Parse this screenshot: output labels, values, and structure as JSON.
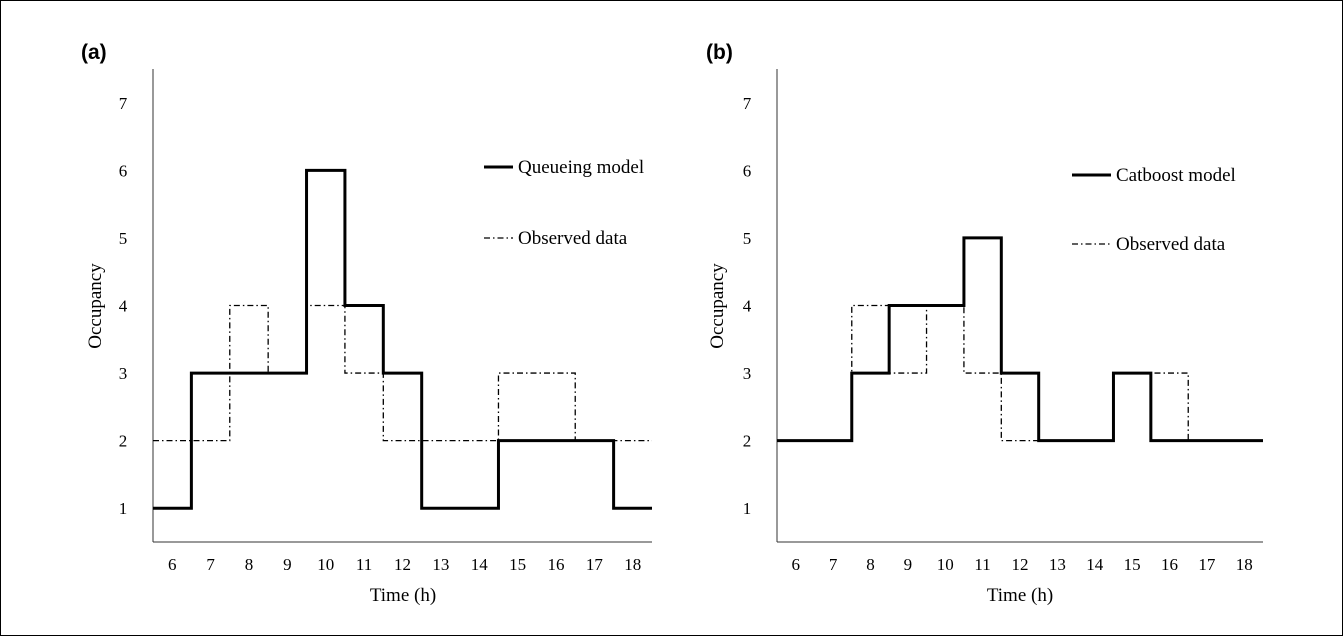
{
  "colors": {
    "axis": "#333333",
    "line": "#000000",
    "background": "#ffffff"
  },
  "chart_data": [
    {
      "panel_label": "(a)",
      "type": "line",
      "step": true,
      "xlabel": "Time (h)",
      "ylabel": "Occupancy",
      "x_ticks": [
        "6",
        "7",
        "8",
        "9",
        "10",
        "11",
        "12",
        "13",
        "14",
        "15",
        "16",
        "17",
        "18"
      ],
      "y_ticks": [
        "1",
        "2",
        "3",
        "4",
        "5",
        "6",
        "7"
      ],
      "xlim": [
        5.5,
        18.5
      ],
      "ylim": [
        0.5,
        7.5
      ],
      "legend_position": "right",
      "series": [
        {
          "name": "Queueing model",
          "style": "solid",
          "x": [
            6,
            7,
            8,
            9,
            10,
            11,
            12,
            13,
            14,
            15,
            16,
            17,
            18
          ],
          "values": [
            1,
            3,
            3,
            3,
            6,
            4,
            3,
            1,
            1,
            2,
            2,
            2,
            1
          ]
        },
        {
          "name": "Observed data",
          "style": "dashdot",
          "x": [
            6,
            7,
            8,
            9,
            10,
            11,
            12,
            13,
            14,
            15,
            16,
            17,
            18
          ],
          "values": [
            2,
            2,
            4,
            3,
            4,
            3,
            2,
            2,
            2,
            3,
            3,
            2,
            2
          ]
        }
      ]
    },
    {
      "panel_label": "(b)",
      "type": "line",
      "step": true,
      "xlabel": "Time (h)",
      "ylabel": "Occupancy",
      "x_ticks": [
        "6",
        "7",
        "8",
        "9",
        "10",
        "11",
        "12",
        "13",
        "14",
        "15",
        "16",
        "17",
        "18"
      ],
      "y_ticks": [
        "1",
        "2",
        "3",
        "4",
        "5",
        "6",
        "7"
      ],
      "xlim": [
        5.5,
        18.5
      ],
      "ylim": [
        0.5,
        7.5
      ],
      "legend_position": "right",
      "series": [
        {
          "name": "Catboost model",
          "style": "solid",
          "x": [
            6,
            7,
            8,
            9,
            10,
            11,
            12,
            13,
            14,
            15,
            16,
            17,
            18
          ],
          "values": [
            2,
            2,
            3,
            4,
            4,
            5,
            3,
            2,
            2,
            3,
            2,
            2,
            2
          ]
        },
        {
          "name": "Observed data",
          "style": "dashdot",
          "x": [
            6,
            7,
            8,
            9,
            10,
            11,
            12,
            13,
            14,
            15,
            16,
            17,
            18
          ],
          "values": [
            2,
            2,
            4,
            3,
            4,
            3,
            2,
            2,
            2,
            3,
            3,
            2,
            2
          ]
        }
      ]
    }
  ]
}
